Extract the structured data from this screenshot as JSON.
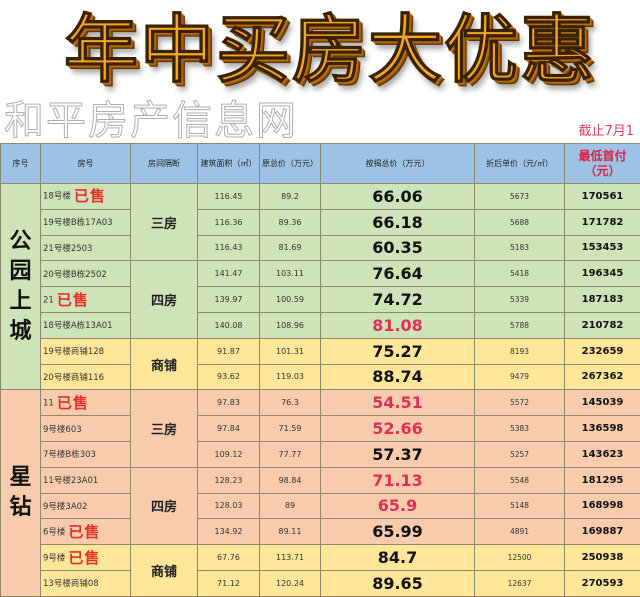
{
  "title": "年中买房大优惠",
  "cutoff": "截止7月1",
  "watermark": "和平房产信息网",
  "headers": [
    "序号",
    "房号",
    "房间隔断",
    "建筑面积（㎡）",
    "原总价（万元）",
    "按揭总价（万元）",
    "折后单价（元/㎡）",
    "最低首付（元）"
  ],
  "sold_label": "已售",
  "colors": {
    "header": "#9dc3e6",
    "green": "#cfe3b8",
    "yellow": "#ffe699",
    "peach": "#f8cbad",
    "highlight_red": "#e0305a"
  },
  "sections": [
    {
      "name": "公园上城",
      "groups": [
        {
          "layout": "三房",
          "color": "green",
          "rows": [
            {
              "room": "18号楼",
              "sold": true,
              "area": "116.45",
              "orig": "89.2",
              "mortgage": "66.06",
              "unit": "5673",
              "down": "170561",
              "red": false
            },
            {
              "room": "19号楼B栋17A03",
              "sold": false,
              "area": "116.36",
              "orig": "89.36",
              "mortgage": "66.18",
              "unit": "5688",
              "down": "171782",
              "red": false
            },
            {
              "room": "21号楼2503",
              "sold": false,
              "area": "116.43",
              "orig": "81.69",
              "mortgage": "60.35",
              "unit": "5183",
              "down": "153453",
              "red": false
            }
          ]
        },
        {
          "layout": "四房",
          "color": "green",
          "rows": [
            {
              "room": "20号楼B栋2502",
              "sold": false,
              "area": "141.47",
              "orig": "103.11",
              "mortgage": "76.64",
              "unit": "5418",
              "down": "196345",
              "red": false
            },
            {
              "room": "21",
              "sold": true,
              "area": "139.97",
              "orig": "100.59",
              "mortgage": "74.72",
              "unit": "5339",
              "down": "187183",
              "red": false
            },
            {
              "room": "18号楼A栋13A01",
              "sold": false,
              "area": "140.08",
              "orig": "108.96",
              "mortgage": "81.08",
              "unit": "5788",
              "down": "210782",
              "red": true
            }
          ]
        },
        {
          "layout": "商铺",
          "color": "yellow",
          "rows": [
            {
              "room": "19号楼商铺128",
              "sold": false,
              "area": "91.87",
              "orig": "101.31",
              "mortgage": "75.27",
              "unit": "8193",
              "down": "232659",
              "red": false
            },
            {
              "room": "20号楼商铺116",
              "sold": false,
              "area": "93.62",
              "orig": "119.03",
              "mortgage": "88.74",
              "unit": "9479",
              "down": "267362",
              "red": false
            }
          ]
        }
      ]
    },
    {
      "name": "星钻",
      "groups": [
        {
          "layout": "三房",
          "color": "peach",
          "rows": [
            {
              "room": "11",
              "sold": true,
              "area": "97.83",
              "orig": "76.3",
              "mortgage": "54.51",
              "unit": "5572",
              "down": "145039",
              "red": true
            },
            {
              "room": "9号楼603",
              "sold": false,
              "area": "97.84",
              "orig": "71.59",
              "mortgage": "52.66",
              "unit": "5383",
              "down": "136598",
              "red": true
            },
            {
              "room": "7号楼B栋303",
              "sold": false,
              "area": "109.12",
              "orig": "77.77",
              "mortgage": "57.37",
              "unit": "5257",
              "down": "143623",
              "red": false
            }
          ]
        },
        {
          "layout": "四房",
          "color": "peach",
          "rows": [
            {
              "room": "11号楼23A01",
              "sold": false,
              "area": "128.23",
              "orig": "98.84",
              "mortgage": "71.13",
              "unit": "5548",
              "down": "181295",
              "red": true
            },
            {
              "room": "9号楼3A02",
              "sold": false,
              "area": "128.03",
              "orig": "89",
              "mortgage": "65.9",
              "unit": "5148",
              "down": "168998",
              "red": true
            },
            {
              "room": "6号楼",
              "sold": true,
              "area": "134.92",
              "orig": "89.11",
              "mortgage": "65.99",
              "unit": "4891",
              "down": "169887",
              "red": false
            }
          ]
        },
        {
          "layout": "商铺",
          "color": "yellow",
          "rows": [
            {
              "room": "9号楼",
              "sold": true,
              "area": "67.76",
              "orig": "113.71",
              "mortgage": "84.7",
              "unit": "12500",
              "down": "250938",
              "red": false
            },
            {
              "room": "13号楼商铺08",
              "sold": false,
              "area": "71.12",
              "orig": "120.24",
              "mortgage": "89.65",
              "unit": "12637",
              "down": "270593",
              "red": false
            }
          ]
        }
      ]
    }
  ]
}
